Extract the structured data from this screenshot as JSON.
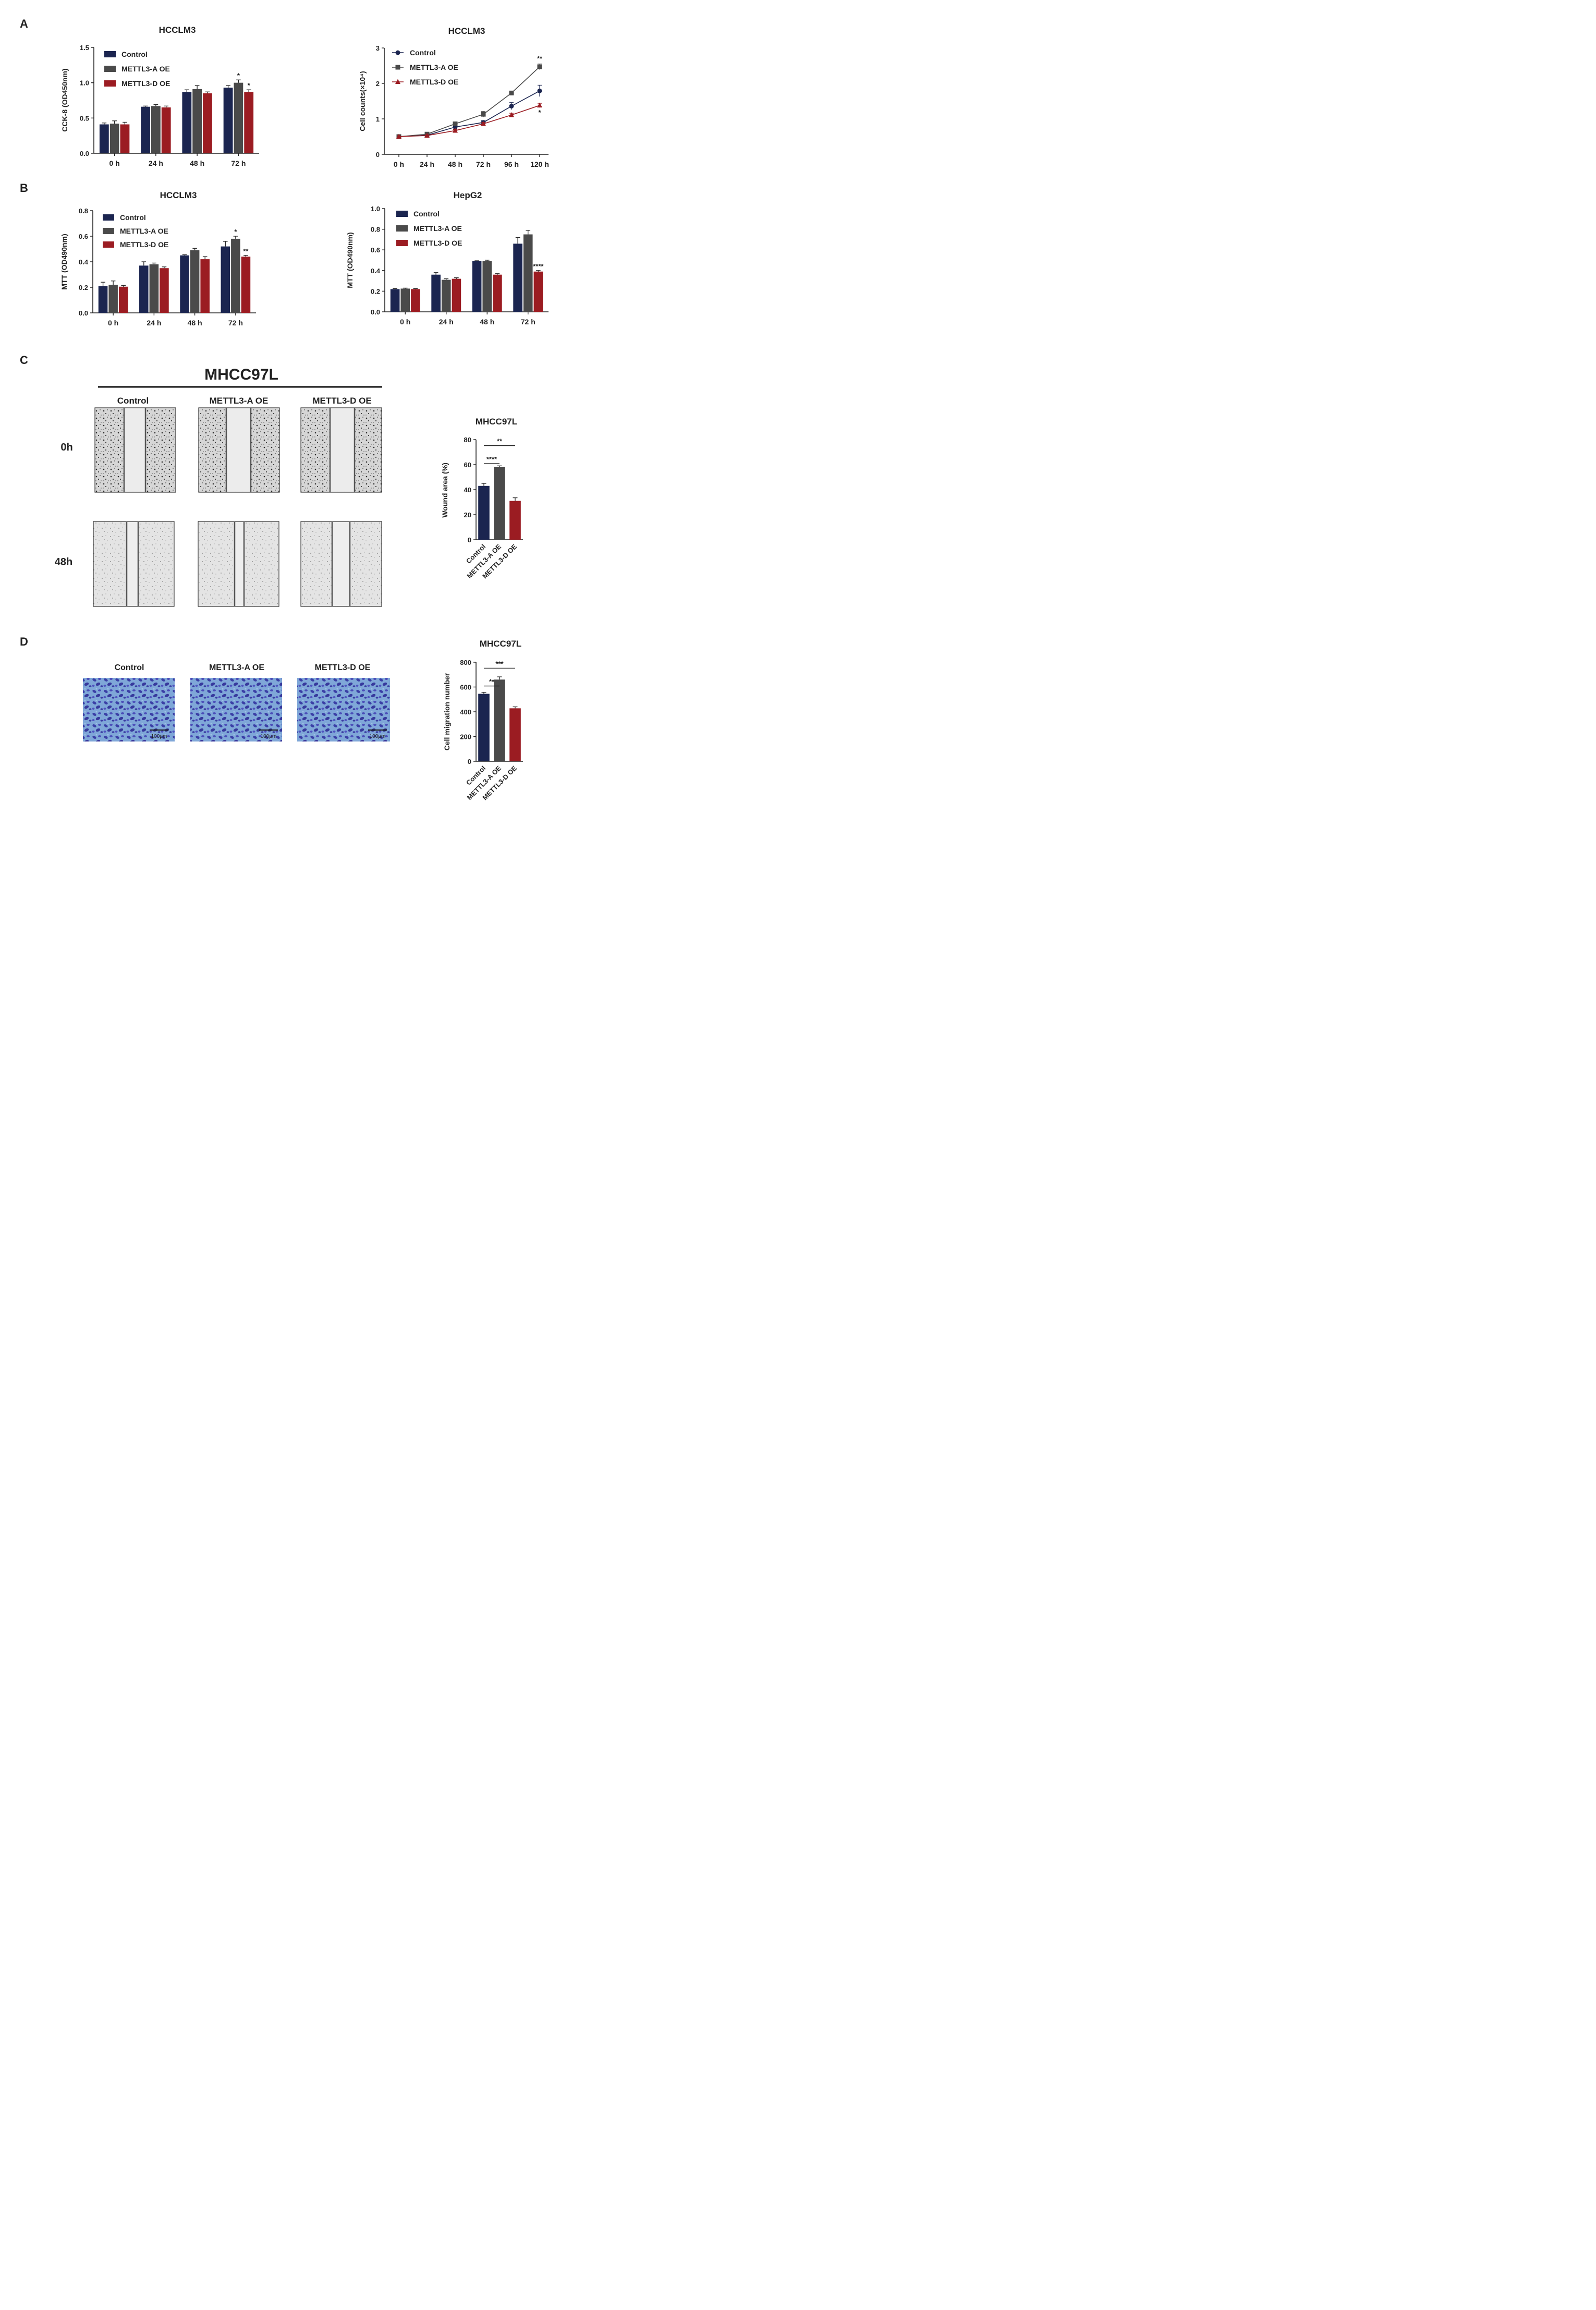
{
  "panels": {
    "A": {
      "letter": "A"
    },
    "B": {
      "letter": "B"
    },
    "C": {
      "letter": "C",
      "cell_line": "MHCC97L",
      "columns": [
        "Control",
        "METTL3-A OE",
        "METTL3-D OE"
      ],
      "rows": [
        "0h",
        "48h"
      ]
    },
    "D": {
      "letter": "D",
      "columns": [
        "Control",
        "METTL3-A OE",
        "METTL3-D OE"
      ],
      "scale_label": "100μm"
    }
  },
  "colors": {
    "control": "#1b2550",
    "a_oe": "#4a4a4a",
    "d_oe": "#9b1c22"
  },
  "chart_data": [
    {
      "id": "A1",
      "type": "bar",
      "title": "HCCLM3",
      "ylabel": "CCK-8 (OD450nm)",
      "categories": [
        "0 h",
        "24 h",
        "48 h",
        "72 h"
      ],
      "ylim": [
        0,
        1.5
      ],
      "yticks": [
        "0.0",
        "0.5",
        "1.0",
        "1.5"
      ],
      "series": [
        {
          "name": "Control",
          "values": [
            0.41,
            0.66,
            0.87,
            0.93
          ],
          "errors": [
            0.02,
            0.01,
            0.03,
            0.03
          ]
        },
        {
          "name": "METTL3-A OE",
          "values": [
            0.42,
            0.67,
            0.91,
            1.0
          ],
          "errors": [
            0.04,
            0.02,
            0.05,
            0.04
          ]
        },
        {
          "name": "METTL3-D OE",
          "values": [
            0.41,
            0.65,
            0.85,
            0.87
          ],
          "errors": [
            0.03,
            0.02,
            0.02,
            0.03
          ]
        }
      ],
      "annotations": [
        {
          "group": 3,
          "series": 1,
          "text": "*"
        },
        {
          "group": 3,
          "series": 2,
          "text": "*"
        }
      ]
    },
    {
      "id": "A2",
      "type": "line",
      "title": "HCCLM3",
      "ylabel": "Cell counts(×10⁴)",
      "categories": [
        "0 h",
        "24 h",
        "48 h",
        "72 h",
        "96 h",
        "120 h"
      ],
      "ylim": [
        0,
        3
      ],
      "yticks": [
        "0",
        "1",
        "2",
        "3"
      ],
      "series": [
        {
          "name": "Control",
          "marker": "circle",
          "values": [
            0.5,
            0.54,
            0.77,
            0.9,
            1.36,
            1.79
          ],
          "errors": [
            0.02,
            0.03,
            0.04,
            0.05,
            0.1,
            0.16
          ]
        },
        {
          "name": "METTL3-A OE",
          "marker": "square",
          "values": [
            0.5,
            0.57,
            0.86,
            1.13,
            1.73,
            2.47
          ],
          "errors": [
            0.02,
            0.03,
            0.05,
            0.08,
            0.05,
            0.08
          ]
        },
        {
          "name": "METTL3-D OE",
          "marker": "triangle",
          "values": [
            0.5,
            0.53,
            0.67,
            0.86,
            1.11,
            1.38
          ],
          "errors": [
            0.02,
            0.02,
            0.03,
            0.04,
            0.05,
            0.06
          ]
        }
      ],
      "annotations": [
        {
          "group": 5,
          "series": 1,
          "text": "**"
        },
        {
          "group": 5,
          "series": 2,
          "text": "*"
        }
      ]
    },
    {
      "id": "B1",
      "type": "bar",
      "title": "HCCLM3",
      "ylabel": "MTT (OD490nm)",
      "categories": [
        "0 h",
        "24 h",
        "48 h",
        "72 h"
      ],
      "ylim": [
        0,
        0.8
      ],
      "yticks": [
        "0.0",
        "0.2",
        "0.4",
        "0.6",
        "0.8"
      ],
      "series": [
        {
          "name": "Control",
          "values": [
            0.21,
            0.37,
            0.45,
            0.52
          ],
          "errors": [
            0.03,
            0.03,
            0.005,
            0.04
          ]
        },
        {
          "name": "METTL3-A OE",
          "values": [
            0.22,
            0.38,
            0.49,
            0.58
          ],
          "errors": [
            0.03,
            0.01,
            0.015,
            0.02
          ]
        },
        {
          "name": "METTL3-D OE",
          "values": [
            0.205,
            0.35,
            0.42,
            0.44
          ],
          "errors": [
            0.01,
            0.01,
            0.02,
            0.01
          ]
        }
      ],
      "annotations": [
        {
          "group": 3,
          "series": 1,
          "text": "*"
        },
        {
          "group": 3,
          "series": 2,
          "text": "**"
        }
      ]
    },
    {
      "id": "B2",
      "type": "bar",
      "title": "HepG2",
      "ylabel": "MTT (OD490nm)",
      "categories": [
        "0 h",
        "24 h",
        "48 h",
        "72 h"
      ],
      "ylim": [
        0,
        1.0
      ],
      "yticks": [
        "0.0",
        "0.2",
        "0.4",
        "0.6",
        "0.8",
        "1.0"
      ],
      "series": [
        {
          "name": "Control",
          "values": [
            0.22,
            0.36,
            0.49,
            0.66
          ],
          "errors": [
            0.005,
            0.02,
            0.005,
            0.06
          ]
        },
        {
          "name": "METTL3-A OE",
          "values": [
            0.225,
            0.31,
            0.49,
            0.75
          ],
          "errors": [
            0.005,
            0.01,
            0.01,
            0.04
          ]
        },
        {
          "name": "METTL3-D OE",
          "values": [
            0.22,
            0.32,
            0.36,
            0.39
          ],
          "errors": [
            0.005,
            0.01,
            0.01,
            0.01
          ]
        }
      ],
      "annotations": [
        {
          "group": 3,
          "series": 2,
          "text": "****"
        }
      ]
    },
    {
      "id": "C1",
      "type": "bar",
      "title": "MHCC97L",
      "ylabel": "Wound area (%)",
      "categories": [
        "Control",
        "METTL3-A OE",
        "METTL3-D OE"
      ],
      "ylim": [
        0,
        80
      ],
      "yticks": [
        "0",
        "20",
        "40",
        "60",
        "80"
      ],
      "values": [
        43,
        58,
        31
      ],
      "errors": [
        2,
        1,
        2.5
      ],
      "brackets": [
        {
          "from": 0,
          "to": 1,
          "text": "****"
        },
        {
          "from": 0,
          "to": 2,
          "text": "**"
        }
      ]
    },
    {
      "id": "D1",
      "type": "bar",
      "title": "MHCC97L",
      "ylabel": "Cell migration number",
      "categories": [
        "Control",
        "METTL3-A OE",
        "METTL3-D OE"
      ],
      "ylim": [
        0,
        800
      ],
      "yticks": [
        "0",
        "200",
        "400",
        "600",
        "800"
      ],
      "values": [
        545,
        660,
        428
      ],
      "errors": [
        12,
        22,
        12
      ],
      "brackets": [
        {
          "from": 0,
          "to": 1,
          "text": "**"
        },
        {
          "from": 0,
          "to": 2,
          "text": "***"
        }
      ]
    }
  ]
}
